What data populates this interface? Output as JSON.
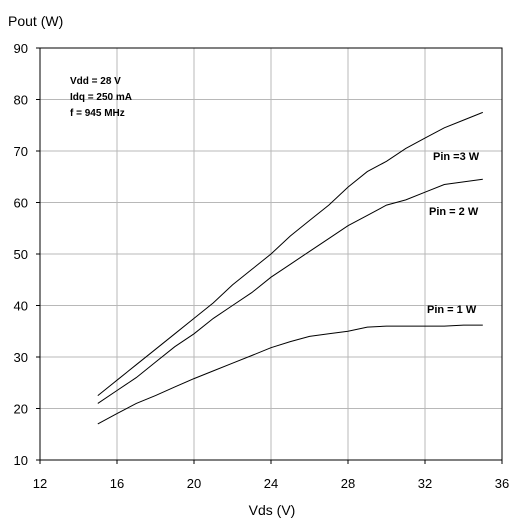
{
  "chart_data": {
    "type": "line",
    "xlabel": "Vds (V)",
    "ylabel": "Pout (W)",
    "xlim": [
      12,
      36
    ],
    "ylim": [
      10,
      90
    ],
    "xticks": [
      12,
      16,
      20,
      24,
      28,
      32,
      36
    ],
    "yticks": [
      10,
      20,
      30,
      40,
      50,
      60,
      70,
      80,
      90
    ],
    "grid": true,
    "annotations": [
      "Vdd = 28 V",
      "Idq = 250 mA",
      "f = 945 MHz"
    ],
    "series": [
      {
        "name": "Pin =3 W",
        "x": [
          15,
          16,
          17,
          18,
          19,
          20,
          21,
          22,
          23,
          24,
          25,
          26,
          27,
          28,
          29,
          30,
          31,
          32,
          33,
          34,
          35
        ],
        "y": [
          22.5,
          25.5,
          28.5,
          31.5,
          34.5,
          37.5,
          40.5,
          44,
          47,
          50,
          53.5,
          56.5,
          59.5,
          63,
          66,
          68,
          70.5,
          72.5,
          74.5,
          76,
          77.5
        ]
      },
      {
        "name": "Pin = 2 W",
        "x": [
          15,
          16,
          17,
          18,
          19,
          20,
          21,
          22,
          23,
          24,
          25,
          26,
          27,
          28,
          29,
          30,
          31,
          32,
          33,
          34,
          35
        ],
        "y": [
          21,
          23.5,
          26,
          29,
          32,
          34.5,
          37.5,
          40,
          42.5,
          45.5,
          48,
          50.5,
          53,
          55.5,
          57.5,
          59.5,
          60.5,
          62,
          63.5,
          64,
          64.5
        ]
      },
      {
        "name": "Pin = 1 W",
        "x": [
          15,
          16,
          17,
          18,
          19,
          20,
          21,
          22,
          23,
          24,
          25,
          26,
          27,
          28,
          29,
          30,
          31,
          32,
          33,
          34,
          35
        ],
        "y": [
          17,
          19,
          21,
          22.5,
          24.2,
          25.8,
          27.3,
          28.8,
          30.3,
          31.8,
          33,
          34,
          34.5,
          35,
          35.8,
          36,
          36,
          36,
          36,
          36.2,
          36.2
        ]
      }
    ]
  }
}
